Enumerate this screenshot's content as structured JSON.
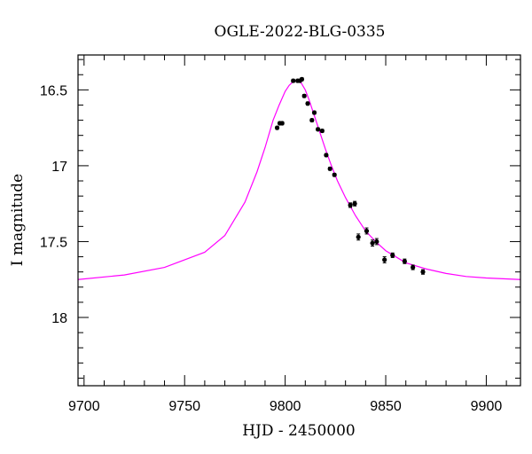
{
  "chart_data": {
    "type": "scatter",
    "title": "OGLE-2022-BLG-0335",
    "xlabel": "HJD - 2450000",
    "ylabel": "I magnitude",
    "xlim": [
      9697,
      9917
    ],
    "ylim": [
      18.45,
      16.27
    ],
    "y_inverted": true,
    "x_ticks": [
      9700,
      9750,
      9800,
      9850,
      9900
    ],
    "x_tick_labels": [
      "9700",
      "9750",
      "9800",
      "9850",
      "9900"
    ],
    "y_ticks": [
      16.5,
      17,
      17.5,
      18
    ],
    "y_tick_labels": [
      "16.5",
      "17",
      "17.5",
      "18"
    ],
    "grid": false,
    "series": [
      {
        "kind": "observations",
        "color": "#000000",
        "points": [
          {
            "x": 9796.0,
            "y": 16.75,
            "err": 0.01
          },
          {
            "x": 9797.3,
            "y": 16.72,
            "err": 0.01
          },
          {
            "x": 9798.5,
            "y": 16.72,
            "err": 0.01
          },
          {
            "x": 9804.0,
            "y": 16.44,
            "err": 0.01
          },
          {
            "x": 9806.2,
            "y": 16.44,
            "err": 0.01
          },
          {
            "x": 9807.3,
            "y": 16.44,
            "err": 0.01
          },
          {
            "x": 9808.3,
            "y": 16.43,
            "err": 0.01
          },
          {
            "x": 9809.5,
            "y": 16.54,
            "err": 0.01
          },
          {
            "x": 9811.2,
            "y": 16.59,
            "err": 0.01
          },
          {
            "x": 9813.3,
            "y": 16.7,
            "err": 0.01
          },
          {
            "x": 9814.5,
            "y": 16.65,
            "err": 0.01
          },
          {
            "x": 9816.3,
            "y": 16.76,
            "err": 0.01
          },
          {
            "x": 9818.4,
            "y": 16.77,
            "err": 0.01
          },
          {
            "x": 9820.4,
            "y": 16.93,
            "err": 0.01
          },
          {
            "x": 9822.3,
            "y": 17.02,
            "err": 0.01
          },
          {
            "x": 9824.5,
            "y": 17.06,
            "err": 0.01
          },
          {
            "x": 9832.4,
            "y": 17.26,
            "err": 0.015
          },
          {
            "x": 9834.6,
            "y": 17.25,
            "err": 0.015
          },
          {
            "x": 9836.4,
            "y": 17.47,
            "err": 0.02
          },
          {
            "x": 9840.5,
            "y": 17.43,
            "err": 0.02
          },
          {
            "x": 9843.4,
            "y": 17.51,
            "err": 0.02
          },
          {
            "x": 9845.5,
            "y": 17.5,
            "err": 0.02
          },
          {
            "x": 9849.4,
            "y": 17.62,
            "err": 0.02
          },
          {
            "x": 9853.4,
            "y": 17.59,
            "err": 0.015
          },
          {
            "x": 9859.4,
            "y": 17.63,
            "err": 0.015
          },
          {
            "x": 9863.5,
            "y": 17.67,
            "err": 0.015
          },
          {
            "x": 9868.5,
            "y": 17.7,
            "err": 0.015
          }
        ]
      },
      {
        "kind": "model",
        "color": "#ff00ff",
        "x": [
          9697,
          9720,
          9740,
          9760,
          9770,
          9780,
          9786,
          9790,
          9794,
          9797,
          9800,
          9802,
          9804,
          9805,
          9806,
          9807,
          9808,
          9810,
          9812,
          9814,
          9816,
          9818,
          9820,
          9823,
          9826,
          9830,
          9835,
          9840,
          9845,
          9850,
          9855,
          9860,
          9865,
          9870,
          9880,
          9890,
          9900,
          9917
        ],
        "y": [
          17.75,
          17.72,
          17.67,
          17.57,
          17.46,
          17.24,
          17.04,
          16.88,
          16.7,
          16.6,
          16.51,
          16.47,
          16.445,
          16.44,
          16.44,
          16.445,
          16.455,
          16.5,
          16.57,
          16.65,
          16.73,
          16.81,
          16.89,
          17.0,
          17.1,
          17.21,
          17.33,
          17.43,
          17.5,
          17.56,
          17.6,
          17.64,
          17.66,
          17.68,
          17.71,
          17.73,
          17.74,
          17.75
        ]
      }
    ]
  }
}
